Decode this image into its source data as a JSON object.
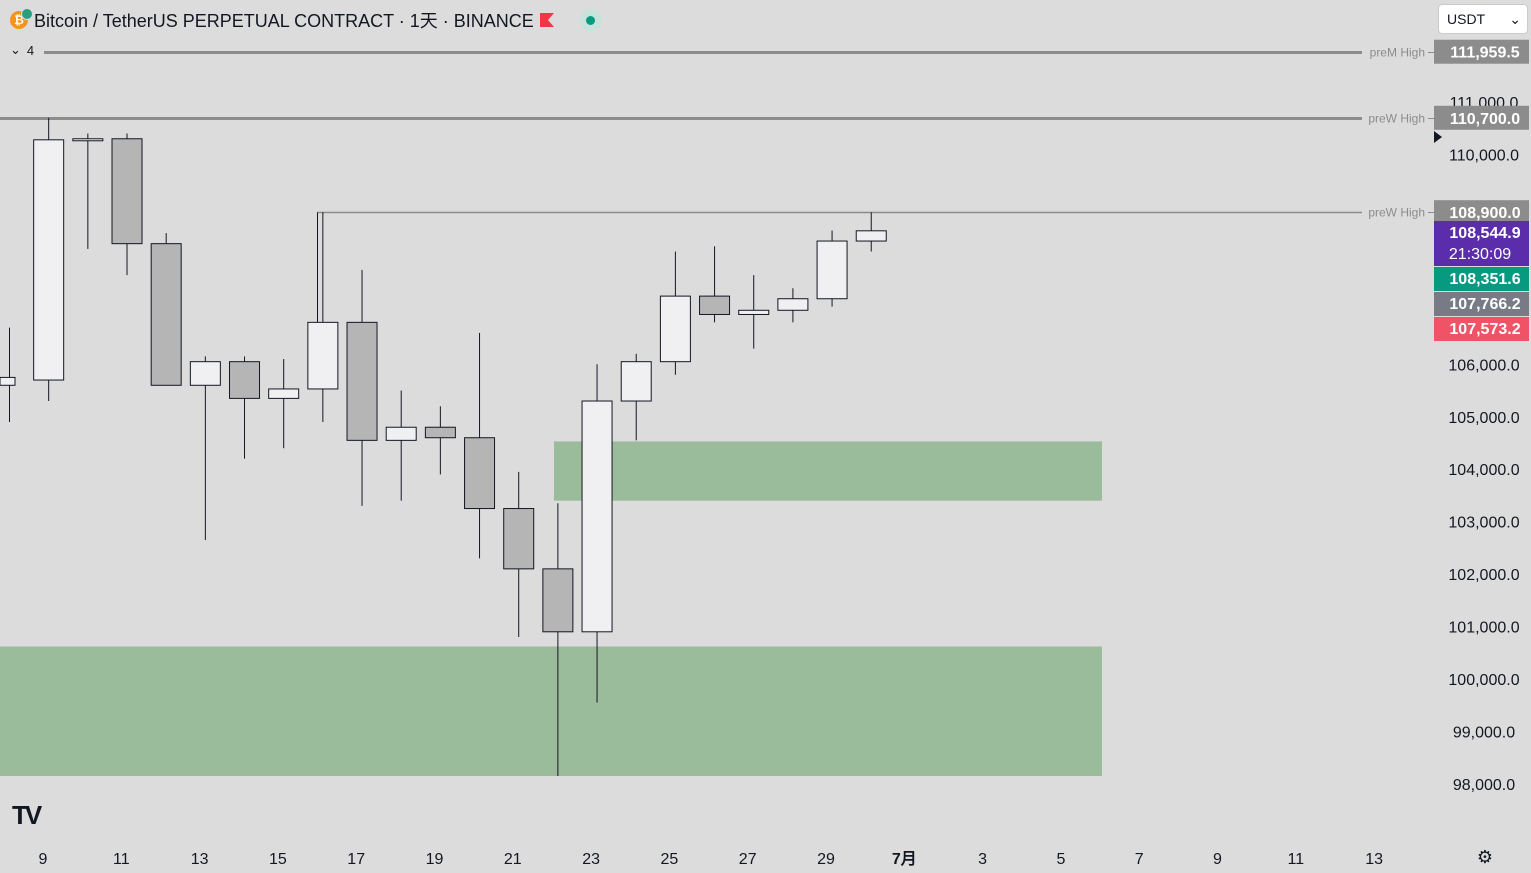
{
  "header": {
    "coin_glyph": "₿",
    "symbol_title": "Bitcoin / TetherUS PERPETUAL CONTRACT · 1天 · BINANCE",
    "flag_color": "#f23645",
    "status_color": "#089981"
  },
  "collapse": {
    "chevron": "⌄",
    "count": "4"
  },
  "currency_select": {
    "value": "USDT",
    "chevron": "⌄"
  },
  "tv_logo": {
    "text": "TV"
  },
  "settings": {
    "icon": "gear-icon",
    "glyph": "⚙"
  },
  "price_axis": {
    "ticks": [
      "111,000.0",
      "110,000.0",
      "106,000.0",
      "105,000.0",
      "104,000.0",
      "103,000.0",
      "102,000.0",
      "101,000.0",
      "100,000.0",
      "99,000.0",
      "98,000.0"
    ]
  },
  "time_axis": {
    "ticks": [
      "9",
      "11",
      "13",
      "15",
      "17",
      "19",
      "21",
      "23",
      "25",
      "27",
      "29",
      "7月",
      "3",
      "5",
      "7",
      "9",
      "11",
      "13"
    ]
  },
  "level_lines": [
    {
      "label": "preM High",
      "price": "111,959.5",
      "value": 111959.5
    },
    {
      "label": "preW High",
      "price": "110,700.0",
      "value": 110700.0
    },
    {
      "label": "preW High",
      "price": "108,900.0",
      "value": 108900.0
    }
  ],
  "price_badges": [
    {
      "price": "108,544.9",
      "sub": "21:30:09",
      "color": "#5b2dab",
      "value": 108544.9
    },
    {
      "price": "108,351.6",
      "color": "#089981",
      "value": 108351.6
    },
    {
      "price": "107,766.2",
      "color": "#787b86",
      "value": 107766.2
    },
    {
      "price": "107,573.2",
      "color": "#f05365",
      "value": 107573.2
    }
  ],
  "zones": [
    {
      "from_price": 103400,
      "to_price": 104530,
      "color": "#9bbc9b"
    },
    {
      "from_price": 98150,
      "to_price": 100620,
      "color": "#9bbc9b"
    }
  ],
  "colors": {
    "background": "#dcdcdc",
    "up_candle": "#f0f0f2",
    "down_candle": "#b5b5b5",
    "wick": "#131722",
    "level_line": "#8c8c8c"
  },
  "chart_data": {
    "type": "candlestick",
    "xlabels": [
      "9",
      "11",
      "13",
      "15",
      "17",
      "19",
      "21",
      "23",
      "25",
      "27",
      "29",
      "7月",
      "3",
      "5",
      "7",
      "9",
      "11",
      "13"
    ],
    "candles": [
      {
        "d": "6-8",
        "o": 105600,
        "h": 106700,
        "l": 104900,
        "c": 105750
      },
      {
        "d": "6-9",
        "o": 105700,
        "h": 110700,
        "l": 105300,
        "c": 110280
      },
      {
        "d": "6-10",
        "o": 110300,
        "h": 110400,
        "l": 108200,
        "c": 110300
      },
      {
        "d": "6-11",
        "o": 110300,
        "h": 110400,
        "l": 107700,
        "c": 108300
      },
      {
        "d": "6-12",
        "o": 108300,
        "h": 108500,
        "l": 105600,
        "c": 105600
      },
      {
        "d": "6-13",
        "o": 105600,
        "h": 106150,
        "l": 102650,
        "c": 106050
      },
      {
        "d": "6-14",
        "o": 106050,
        "h": 106150,
        "l": 104200,
        "c": 105350
      },
      {
        "d": "6-15",
        "o": 105350,
        "h": 106100,
        "l": 104400,
        "c": 105530
      },
      {
        "d": "6-16",
        "o": 105530,
        "h": 108900,
        "l": 104900,
        "c": 106800
      },
      {
        "d": "6-17",
        "o": 106800,
        "h": 107800,
        "l": 103300,
        "c": 104550
      },
      {
        "d": "6-18",
        "o": 104550,
        "h": 105500,
        "l": 103400,
        "c": 104800
      },
      {
        "d": "6-19",
        "o": 104800,
        "h": 105200,
        "l": 103900,
        "c": 104600
      },
      {
        "d": "6-20",
        "o": 104600,
        "h": 106600,
        "l": 102300,
        "c": 103250
      },
      {
        "d": "6-21",
        "o": 103250,
        "h": 103950,
        "l": 100800,
        "c": 102100
      },
      {
        "d": "6-22",
        "o": 102100,
        "h": 103350,
        "l": 98150,
        "c": 100900
      },
      {
        "d": "6-23",
        "o": 100900,
        "h": 106000,
        "l": 99550,
        "c": 105300
      },
      {
        "d": "6-24",
        "o": 105300,
        "h": 106200,
        "l": 104550,
        "c": 106050
      },
      {
        "d": "6-25",
        "o": 106050,
        "h": 108150,
        "l": 105800,
        "c": 107300
      },
      {
        "d": "6-26",
        "o": 107300,
        "h": 108250,
        "l": 106800,
        "c": 106950
      },
      {
        "d": "6-27",
        "o": 106950,
        "h": 107700,
        "l": 106300,
        "c": 107030
      },
      {
        "d": "6-28",
        "o": 107030,
        "h": 107450,
        "l": 106800,
        "c": 107250
      },
      {
        "d": "6-29",
        "o": 107250,
        "h": 108550,
        "l": 107100,
        "c": 108350
      },
      {
        "d": "6-30",
        "o": 108350,
        "h": 108900,
        "l": 108150,
        "c": 108544.9
      }
    ]
  }
}
